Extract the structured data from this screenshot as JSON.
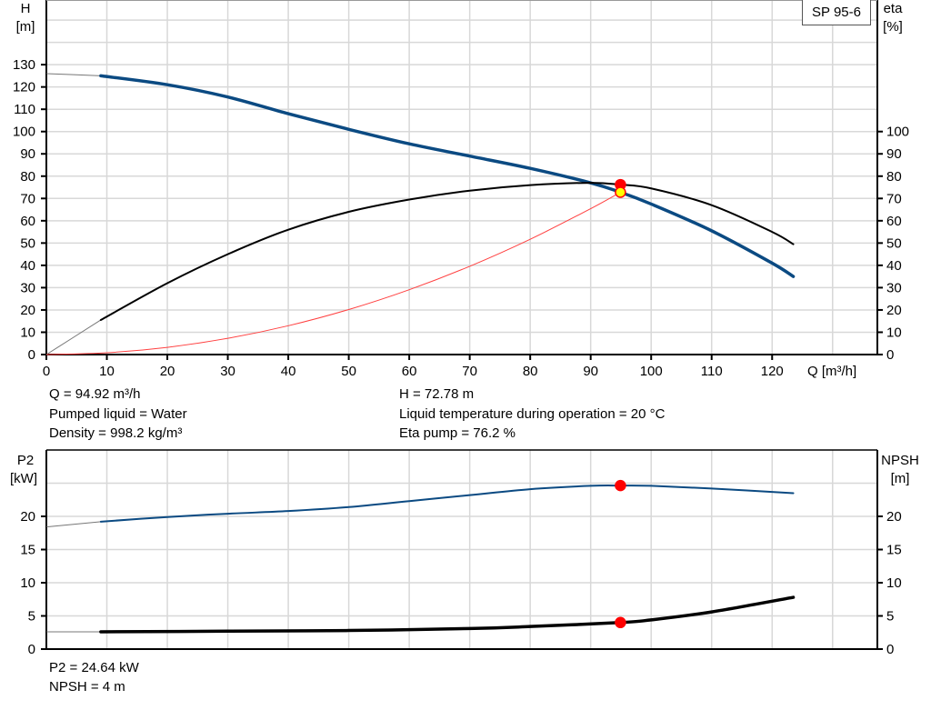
{
  "model": "SP 95-6",
  "colors": {
    "head": "#0b4a82",
    "eta": "#000000",
    "system": "#ff4040",
    "power": "#0b4a82",
    "npsh": "#000000",
    "duty": "#ff0000",
    "duty_fill": "#ffff00",
    "grid": "#d8d8d8"
  },
  "duty_info": {
    "q": "Q = 94.92 m³/h",
    "h": "H = 72.78 m",
    "liquid": "Pumped liquid = Water",
    "temperature": "Liquid temperature during operation = 20 °C",
    "density": "Density = 998.2 kg/m³",
    "eta": "Eta pump = 76.2 %",
    "p2": "P2 = 24.64 kW",
    "npsh": "NPSH = 4 m"
  },
  "chart_data": [
    {
      "type": "line",
      "xlabel": "Q [m³/h]",
      "ylabel_left": [
        "H",
        "[m]"
      ],
      "ylabel_right": [
        "eta",
        "[%]"
      ],
      "xlim": [
        0,
        137.4
      ],
      "ylim": [
        0,
        159
      ],
      "grid": true,
      "x_ticks": [
        0,
        10,
        20,
        30,
        40,
        50,
        60,
        70,
        80,
        90,
        100,
        110,
        120
      ],
      "y_ticks_left": [
        0,
        10,
        20,
        30,
        40,
        50,
        60,
        70,
        80,
        90,
        100,
        110,
        120,
        130
      ],
      "y_ticks_right": [
        0,
        10,
        20,
        30,
        40,
        50,
        60,
        70,
        80,
        90,
        100
      ],
      "series": [
        {
          "key": "head",
          "axis": "left",
          "x": [
            0,
            9,
            20,
            30,
            40,
            50,
            60,
            70,
            80,
            90,
            94.92,
            100,
            110,
            120,
            123.5
          ],
          "y": [
            126,
            125,
            121,
            115.5,
            108,
            101,
            94.5,
            89,
            83.5,
            77,
            72.78,
            67.5,
            55.5,
            41,
            35
          ]
        },
        {
          "key": "eta",
          "axis": "right",
          "x": [
            0,
            9,
            20,
            30,
            40,
            50,
            60,
            70,
            80,
            90,
            94.92,
            100,
            110,
            120,
            123.5
          ],
          "y": [
            0,
            15.5,
            32,
            45,
            56,
            64,
            69.5,
            73.5,
            76,
            77,
            76.2,
            74.5,
            67,
            55,
            49.5
          ]
        },
        {
          "key": "system",
          "axis": "left",
          "x": [
            0,
            10,
            20,
            30,
            40,
            50,
            60,
            70,
            80,
            90,
            94.92
          ],
          "y": [
            0,
            0.81,
            3.23,
            7.27,
            12.92,
            20.19,
            29.08,
            39.58,
            51.7,
            65.43,
            72.78
          ]
        }
      ],
      "duty_points": [
        {
          "x": 94.92,
          "y": 76.2,
          "axis": "right"
        },
        {
          "x": 94.92,
          "y": 72.78,
          "axis": "left"
        }
      ]
    },
    {
      "type": "line",
      "ylabel_left": [
        "P2",
        "[kW]"
      ],
      "ylabel_right": [
        "NPSH",
        "[m]"
      ],
      "xlim": [
        0,
        137.4
      ],
      "ylim": [
        0,
        30
      ],
      "grid": true,
      "y_ticks_left": [
        0,
        5,
        10,
        15,
        20
      ],
      "y_ticks_right": [
        0,
        5,
        10,
        15,
        20
      ],
      "series": [
        {
          "key": "power",
          "axis": "left",
          "x": [
            0,
            9,
            20,
            30,
            40,
            50,
            60,
            70,
            80,
            90,
            94.92,
            100,
            110,
            123.5
          ],
          "y": [
            18.4,
            19.2,
            19.9,
            20.4,
            20.8,
            21.4,
            22.3,
            23.2,
            24.1,
            24.6,
            24.64,
            24.6,
            24.2,
            23.5
          ]
        },
        {
          "key": "npsh",
          "axis": "right",
          "x": [
            0,
            9,
            30,
            50,
            70,
            80,
            94.92,
            100,
            110,
            123.5
          ],
          "y": [
            2.6,
            2.6,
            2.7,
            2.8,
            3.1,
            3.4,
            4,
            4.4,
            5.6,
            7.8
          ]
        }
      ],
      "duty_points": [
        {
          "x": 94.92,
          "y": 24.64,
          "axis": "left"
        },
        {
          "x": 94.92,
          "y": 4,
          "axis": "right"
        }
      ]
    }
  ]
}
